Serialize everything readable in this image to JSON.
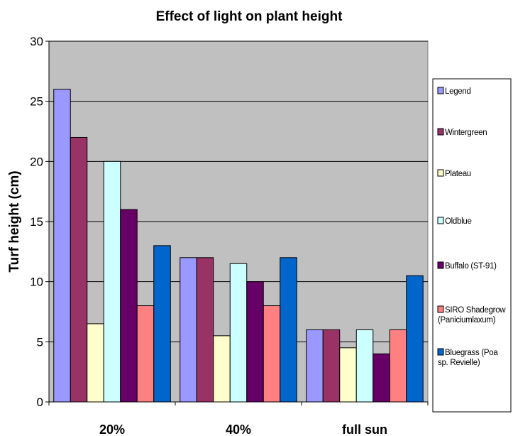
{
  "chart_data": {
    "type": "bar",
    "title": "Effect of light on plant height",
    "xlabel": "",
    "ylabel": "Turf height (cm)",
    "ylim": [
      0,
      30
    ],
    "yticks": [
      "0",
      "5",
      "10",
      "15",
      "20",
      "25",
      "30"
    ],
    "grid": true,
    "legend_position": "right",
    "plot_background": "#c0c0c0",
    "categories": [
      "20%",
      "40%",
      "full sun"
    ],
    "series": [
      {
        "name": "Legend",
        "color": "#9999ff",
        "values": [
          26,
          12,
          6
        ]
      },
      {
        "name": "Wintergreen",
        "color": "#993366",
        "values": [
          22,
          12,
          6
        ]
      },
      {
        "name": "Plateau",
        "color": "#ffffcc",
        "values": [
          6.5,
          5.5,
          4.5
        ]
      },
      {
        "name": "Oldblue",
        "color": "#ccffff",
        "values": [
          20,
          11.5,
          6
        ]
      },
      {
        "name": "Buffalo (ST-91)",
        "color": "#660066",
        "values": [
          16,
          10,
          4
        ]
      },
      {
        "name": "SIRO Shadegrow (Paniciumlaxum)",
        "color": "#ff8080",
        "values": [
          8,
          8,
          6
        ]
      },
      {
        "name": "Bluegrass (Poa sp. Revielle)",
        "color": "#0066cc",
        "values": [
          13,
          12,
          10.5
        ]
      }
    ]
  }
}
